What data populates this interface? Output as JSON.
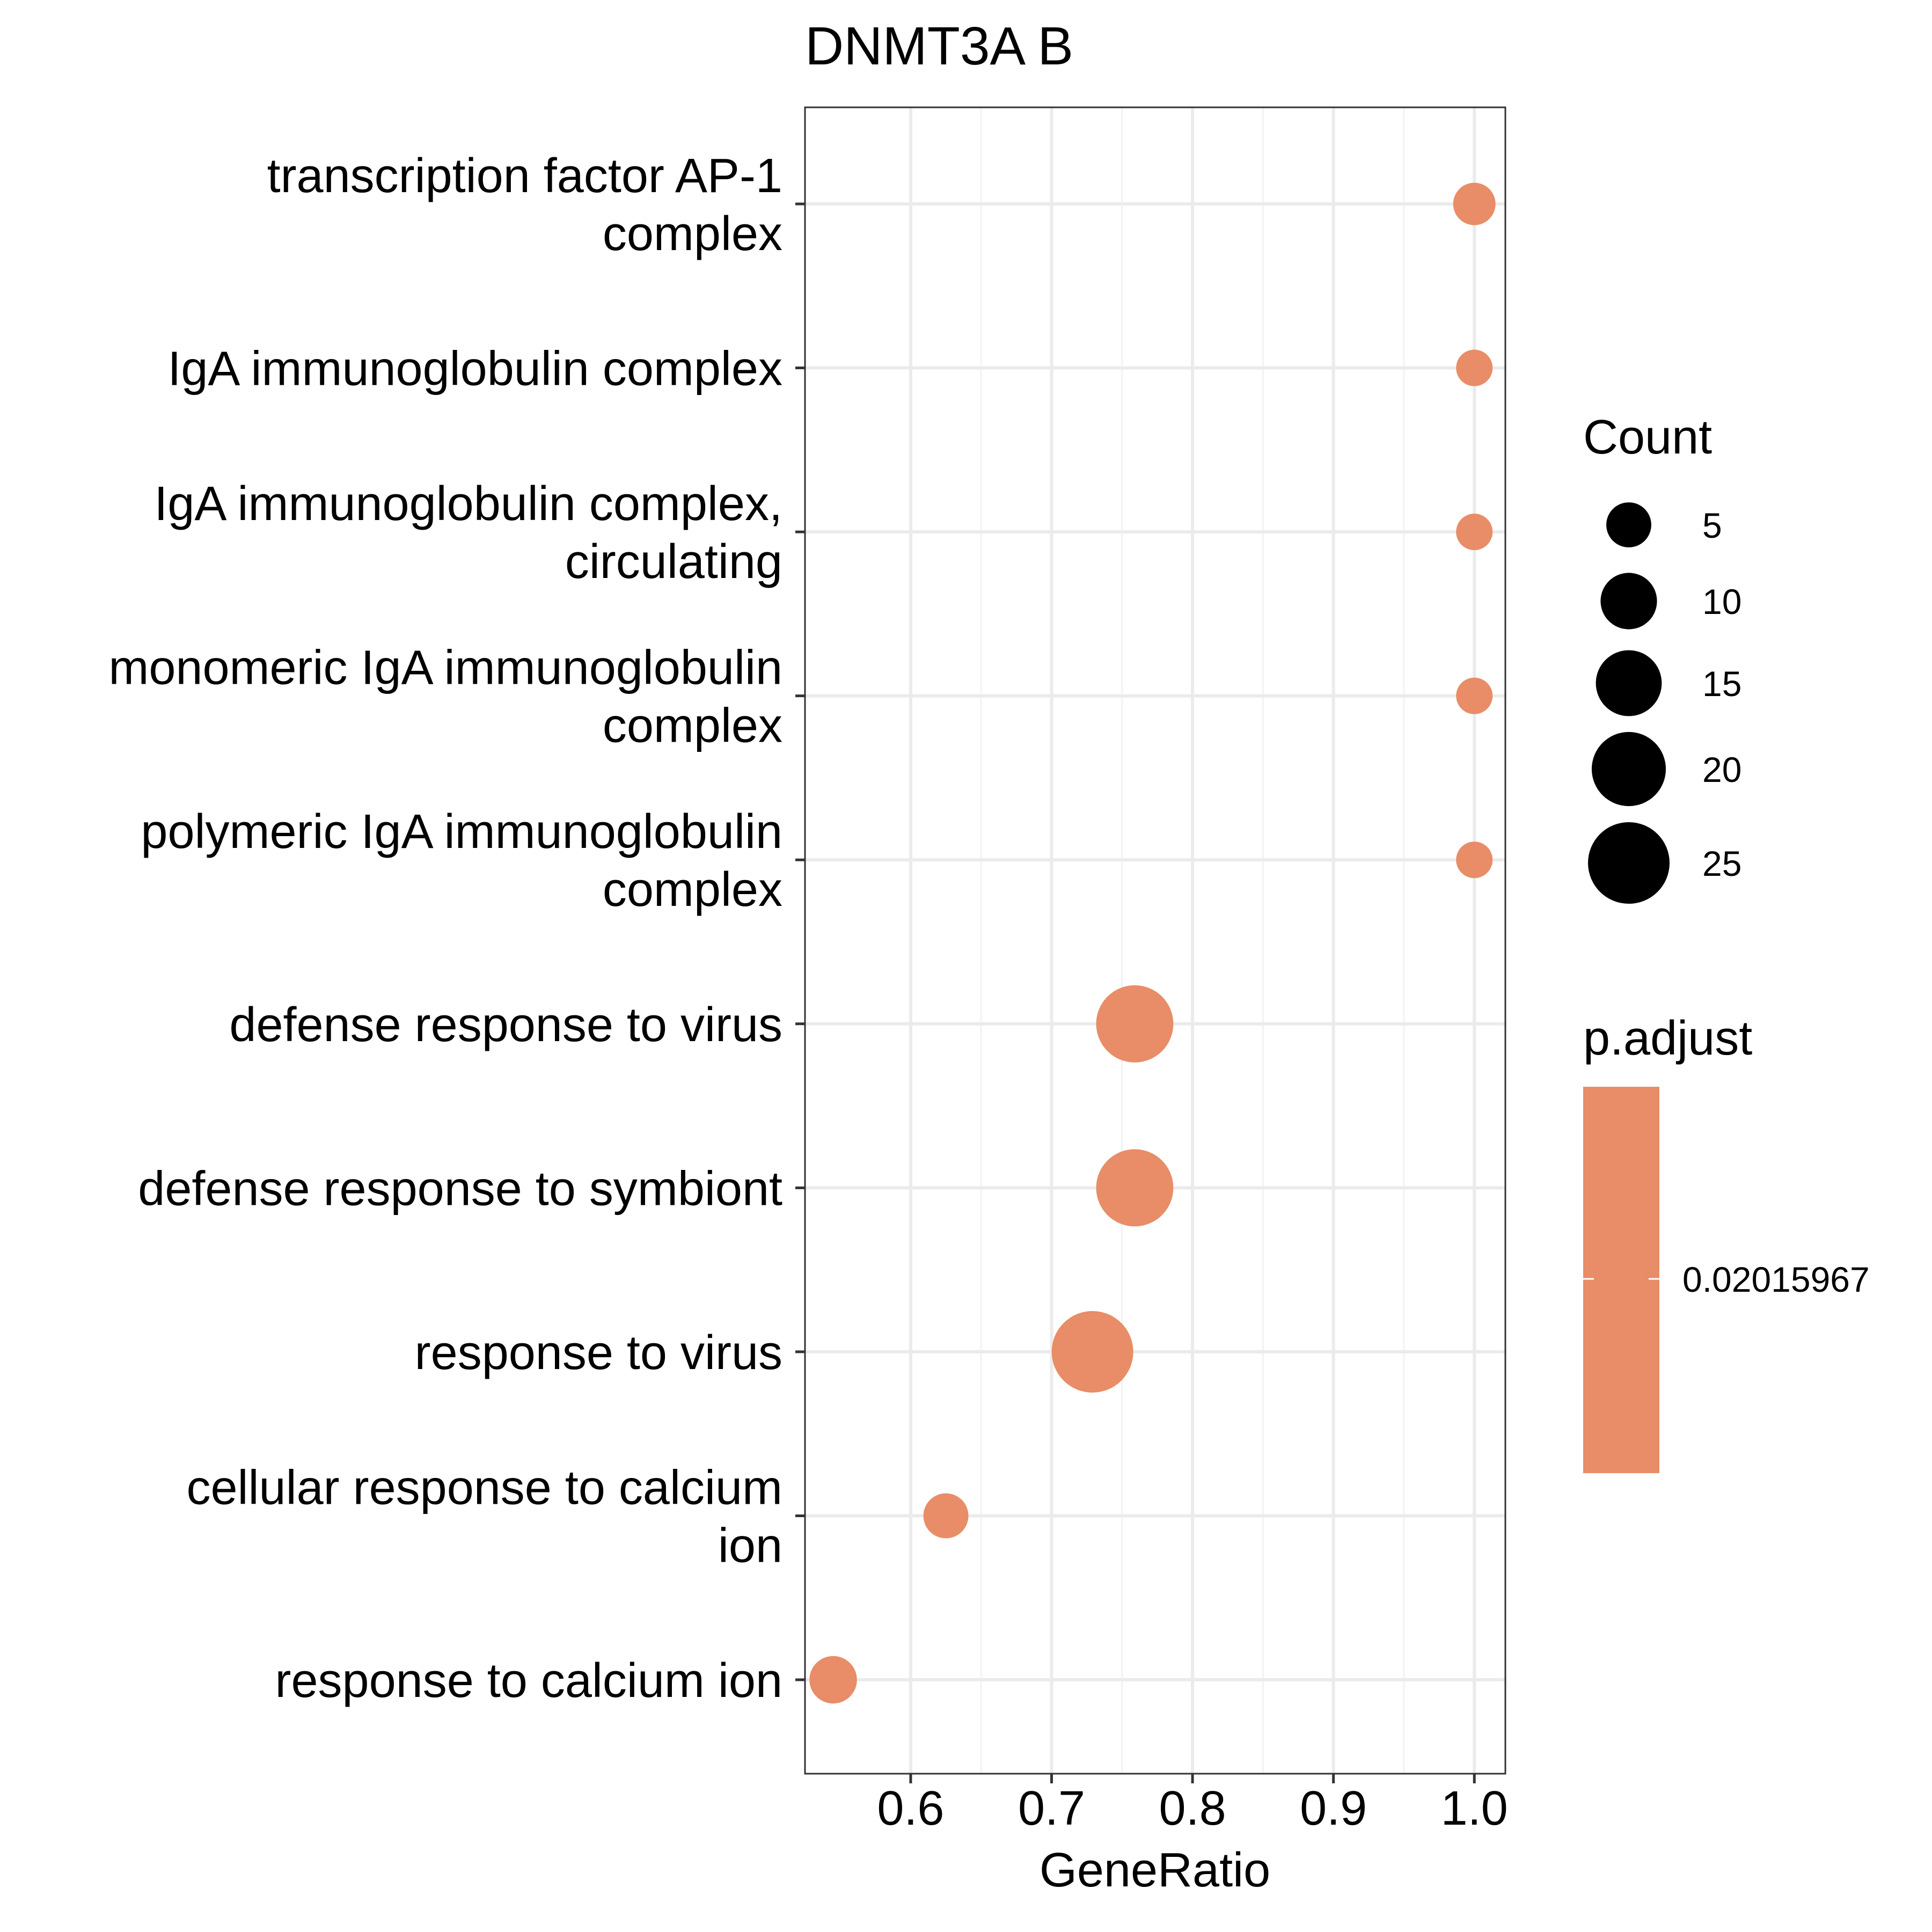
{
  "chart_data": {
    "type": "scatter",
    "title": "DNMT3A B",
    "xlabel": "GeneRatio",
    "ylabel": "",
    "xlim": [
      0.525,
      1.022
    ],
    "xticks": [
      "0.6",
      "0.7",
      "0.8",
      "0.9",
      "1.0"
    ],
    "xtick_values": [
      0.6,
      0.7,
      0.8,
      0.9,
      1.0
    ],
    "grid": true,
    "categories": [
      [
        "transcription factor AP-1",
        "complex"
      ],
      [
        "IgA immunoglobulin complex"
      ],
      [
        "IgA immunoglobulin complex,",
        "circulating"
      ],
      [
        "monomeric IgA immunoglobulin",
        "complex"
      ],
      [
        "polymeric IgA immunoglobulin",
        "complex"
      ],
      [
        "defense response to virus"
      ],
      [
        "defense response to symbiont"
      ],
      [
        "response to virus"
      ],
      [
        "cellular response to calcium",
        "ion"
      ],
      [
        "response to calcium ion"
      ]
    ],
    "gene_ratio": [
      1.0,
      1.0,
      1.0,
      1.0,
      1.0,
      0.759,
      0.759,
      0.729,
      0.625,
      0.545
    ],
    "count": [
      4,
      2,
      2,
      2,
      2,
      22,
      22,
      25,
      5,
      6
    ],
    "p_adjust": [
      0.02015967,
      0.02015967,
      0.02015967,
      0.02015967,
      0.02015967,
      0.02015967,
      0.02015967,
      0.02015967,
      0.02015967,
      0.02015967
    ],
    "point_color": "#E88D67",
    "legend": {
      "size_title": "Count",
      "size_breaks": [
        5,
        10,
        15,
        20,
        25
      ],
      "size_labels": [
        "5",
        "10",
        "15",
        "20",
        "25"
      ],
      "color_title": "p.adjust",
      "color_label": "0.02015967",
      "colorbar_color": "#E88D67",
      "placement": "right"
    }
  }
}
